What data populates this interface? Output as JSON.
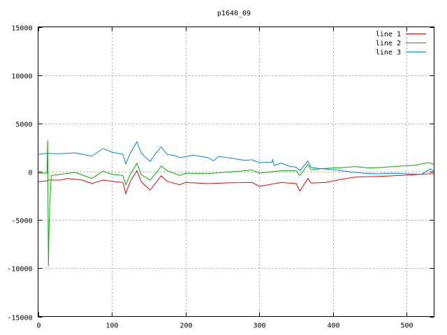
{
  "chart_data": {
    "type": "line",
    "title": "p1640_09",
    "xlabel": "",
    "ylabel": "",
    "xlim": [
      0,
      537
    ],
    "ylim": [
      -15000,
      15000
    ],
    "xticks": [
      0,
      100,
      200,
      300,
      400,
      500
    ],
    "yticks": [
      -15000,
      -10000,
      -5000,
      0,
      5000,
      10000,
      15000
    ],
    "grid": true,
    "legend": "top-right",
    "series": [
      {
        "name": "line 1",
        "color": "#ff0000",
        "x": [
          0,
          12,
          14,
          30,
          40,
          60,
          73,
          88,
          100,
          115,
          119,
          125,
          134,
          140,
          152,
          160,
          167,
          175,
          192,
          200,
          230,
          260,
          290,
          300,
          330,
          350,
          355,
          366,
          370,
          390,
          410,
          430,
          450,
          470,
          490,
          510,
          530,
          537
        ],
        "y": [
          -1040,
          -950,
          -870,
          -870,
          -700,
          -870,
          -1230,
          -870,
          -1000,
          -1110,
          -2270,
          -1000,
          100,
          -1040,
          -1910,
          -1110,
          -430,
          -1000,
          -1350,
          -1110,
          -1230,
          -1150,
          -1110,
          -1520,
          -1110,
          -1230,
          -2000,
          -700,
          -1180,
          -1110,
          -800,
          -560,
          -510,
          -460,
          -390,
          -310,
          -220,
          -220
        ]
      },
      {
        "name": "line 2",
        "color": "#00b000",
        "x": [
          0,
          12,
          13,
          14,
          15,
          16,
          17,
          18,
          30,
          50,
          73,
          88,
          100,
          115,
          119,
          125,
          134,
          140,
          152,
          160,
          167,
          175,
          192,
          200,
          230,
          260,
          290,
          300,
          330,
          350,
          355,
          366,
          370,
          390,
          410,
          430,
          450,
          470,
          490,
          510,
          530,
          537
        ],
        "y": [
          -150,
          -150,
          3240,
          -9800,
          -5600,
          -3200,
          -1760,
          -390,
          -270,
          -70,
          -700,
          50,
          -270,
          -390,
          -1350,
          -270,
          870,
          -320,
          -870,
          -150,
          580,
          100,
          -390,
          -150,
          -200,
          -30,
          170,
          -150,
          100,
          100,
          -390,
          750,
          220,
          340,
          410,
          530,
          390,
          460,
          580,
          650,
          940,
          750
        ]
      },
      {
        "name": "line 3",
        "color": "#0080ff",
        "x": [
          0,
          10,
          30,
          50,
          73,
          88,
          100,
          115,
          119,
          125,
          134,
          140,
          152,
          160,
          167,
          175,
          185,
          192,
          200,
          210,
          230,
          238,
          245,
          260,
          280,
          290,
          300,
          317,
          318,
          320,
          330,
          340,
          350,
          355,
          366,
          370,
          380,
          400,
          420,
          440,
          460,
          480,
          500,
          520,
          532,
          537
        ],
        "y": [
          1790,
          1900,
          1860,
          1950,
          1600,
          2390,
          2030,
          1790,
          820,
          1900,
          3100,
          1900,
          1060,
          1950,
          2560,
          1790,
          1670,
          1470,
          1550,
          1710,
          1470,
          1130,
          1590,
          1430,
          1180,
          1230,
          940,
          990,
          1230,
          650,
          890,
          580,
          460,
          100,
          1130,
          460,
          340,
          220,
          20,
          -150,
          -220,
          -150,
          -220,
          -270,
          290,
          50
        ]
      }
    ]
  }
}
